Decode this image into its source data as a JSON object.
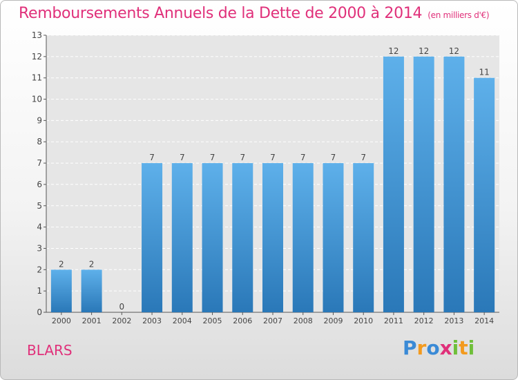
{
  "colors": {
    "title": "#e0307a",
    "bar_top": "#5eb0ea",
    "bar_bottom": "#2a78b8",
    "axis": "#555555",
    "grid": "#ffffff"
  },
  "chart_data": {
    "type": "bar",
    "title": "Remboursements Annuels de la Dette de 2000 à 2014",
    "subtitle": "(en milliers d'€)",
    "categories": [
      "2000",
      "2001",
      "2002",
      "2003",
      "2004",
      "2005",
      "2006",
      "2007",
      "2008",
      "2009",
      "2010",
      "2011",
      "2012",
      "2013",
      "2014"
    ],
    "values": [
      2,
      2,
      0,
      7,
      7,
      7,
      7,
      7,
      7,
      7,
      7,
      12,
      12,
      12,
      11
    ],
    "ylim": [
      0,
      13
    ],
    "yticks": [
      0,
      1,
      2,
      3,
      4,
      5,
      6,
      7,
      8,
      9,
      10,
      11,
      12,
      13
    ],
    "grid": true,
    "legend": "none"
  },
  "footer": {
    "commune": "BLARS",
    "logo_letters": [
      "P",
      "r",
      "o",
      "x",
      "i",
      "t",
      "i"
    ],
    "logo_colors": [
      "#3a8ad6",
      "#f39a1e",
      "#3a8ad6",
      "#e0307a",
      "#6fbf3a",
      "#f39a1e",
      "#6fbf3a"
    ]
  }
}
